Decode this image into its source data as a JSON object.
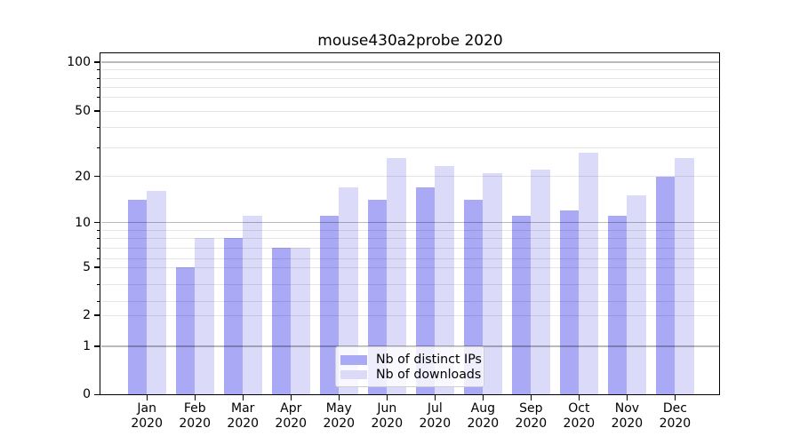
{
  "title": "mouse430a2probe 2020",
  "chart_data": {
    "type": "bar",
    "title": "mouse430a2probe 2020",
    "categories": [
      "Jan 2020",
      "Feb 2020",
      "Mar 2020",
      "Apr 2020",
      "May 2020",
      "Jun 2020",
      "Jul 2020",
      "Aug 2020",
      "Sep 2020",
      "Oct 2020",
      "Nov 2020",
      "Dec 2020"
    ],
    "x_tick_month": [
      "Jan",
      "Feb",
      "Mar",
      "Apr",
      "May",
      "Jun",
      "Jul",
      "Aug",
      "Sep",
      "Oct",
      "Nov",
      "Dec"
    ],
    "x_tick_year": "2020",
    "series": [
      {
        "name": "Nb of distinct IPs",
        "color": "#a9a9f6",
        "values": [
          14,
          5,
          8,
          7,
          11,
          14,
          17,
          14,
          11,
          12,
          11,
          20
        ]
      },
      {
        "name": "Nb of downloads",
        "color": "#dbdbf9",
        "values": [
          16,
          8,
          11,
          7,
          17,
          26,
          23,
          21,
          22,
          28,
          15,
          26
        ]
      }
    ],
    "yscale": "log-like",
    "y_axis_ticks": [
      {
        "label": "100",
        "value": 100,
        "major": true
      },
      {
        "label": "50",
        "value": 50,
        "major": false
      },
      {
        "label": "20",
        "value": 20,
        "major": false
      },
      {
        "label": "10",
        "value": 10,
        "major": true
      },
      {
        "label": "5",
        "value": 5,
        "major": false
      },
      {
        "label": "2",
        "value": 2,
        "major": false
      },
      {
        "label": "1",
        "value": 1,
        "major": true
      },
      {
        "label": "0",
        "value": 0,
        "major": true
      }
    ],
    "grid": true,
    "legend_position": "lower center"
  },
  "legend": {
    "items": [
      {
        "label": "Nb of distinct IPs",
        "color": "#a9a9f6"
      },
      {
        "label": "Nb of downloads",
        "color": "#dbdbf9"
      }
    ]
  },
  "colors": {
    "bar_distinct_ips": "#a9a9f6",
    "bar_downloads": "#dbdbf9",
    "grid_major": "#bdbdbd",
    "grid_minor": "#e7e7e7",
    "axis": "#000000",
    "background": "#ffffff"
  }
}
